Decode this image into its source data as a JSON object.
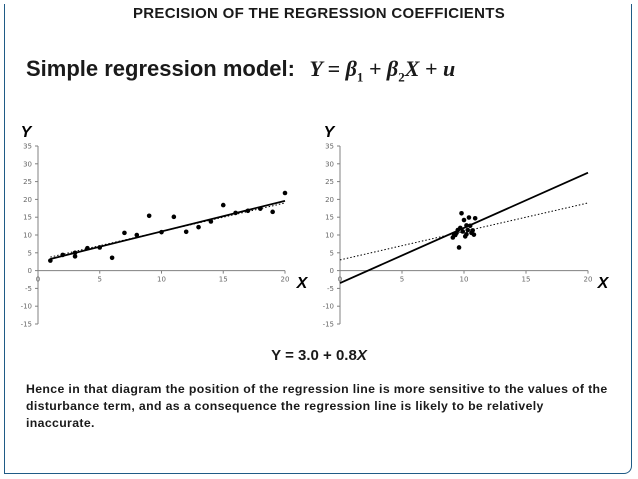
{
  "slide": {
    "title": "PRECISION OF THE REGRESSION COEFFICIENTS",
    "model_label": "Simple regression model:",
    "model_equation": {
      "lhs": "Y = ",
      "beta": "β",
      "sub1": "1",
      "plus1": " + ",
      "sub2": "2",
      "x_term": "X",
      "plus2": " + ",
      "u": "u"
    },
    "fitted_line": {
      "text": "Y = 3.0 + 0.8",
      "var": "X"
    },
    "paragraph": "Hence in that diagram the position of the regression line is more sensitive to the values of the disturbance term, and as a consequence the regression line is likely to be relatively inaccurate."
  },
  "chart_data": [
    {
      "type": "scatter",
      "title": "",
      "xlabel": "X",
      "ylabel": "Y",
      "xlim": [
        0,
        20
      ],
      "ylim": [
        -15,
        35
      ],
      "xticks": [
        0,
        5,
        10,
        15,
        20
      ],
      "yticks": [
        -15,
        -10,
        -5,
        0,
        5,
        10,
        15,
        20,
        25,
        30,
        35
      ],
      "points": [
        [
          1,
          2.8
        ],
        [
          2,
          4.4
        ],
        [
          3,
          4.0
        ],
        [
          3,
          5.0
        ],
        [
          4,
          6.3
        ],
        [
          5,
          6.5
        ],
        [
          6,
          3.6
        ],
        [
          7,
          10.6
        ],
        [
          8,
          10.0
        ],
        [
          9,
          15.4
        ],
        [
          10,
          10.8
        ],
        [
          11,
          15.1
        ],
        [
          12,
          10.9
        ],
        [
          13,
          12.2
        ],
        [
          14,
          13.8
        ],
        [
          15,
          18.4
        ],
        [
          16,
          16.2
        ],
        [
          17,
          16.8
        ],
        [
          18,
          17.4
        ],
        [
          19,
          16.5
        ],
        [
          20,
          21.8
        ]
      ],
      "lines": [
        {
          "name": "true relationship",
          "style": "dotted",
          "intercept": 3.0,
          "slope": 0.8,
          "x_range": [
            1,
            20
          ]
        },
        {
          "name": "fitted regression line",
          "style": "solid",
          "intercept": 2.4,
          "slope": 0.86,
          "x_range": [
            1,
            20
          ]
        }
      ]
    },
    {
      "type": "scatter",
      "title": "",
      "xlabel": "X",
      "ylabel": "Y",
      "xlim": [
        0,
        20
      ],
      "ylim": [
        -15,
        35
      ],
      "xticks": [
        0,
        5,
        10,
        15,
        20
      ],
      "yticks": [
        -15,
        -10,
        -5,
        0,
        5,
        10,
        15,
        20,
        25,
        30,
        35
      ],
      "points": [
        [
          9.1,
          9.3
        ],
        [
          9.3,
          10.0
        ],
        [
          9.4,
          10.6
        ],
        [
          9.6,
          6.5
        ],
        [
          9.7,
          12.0
        ],
        [
          9.8,
          16.1
        ],
        [
          9.9,
          11.0
        ],
        [
          10.0,
          14.2
        ],
        [
          10.1,
          9.6
        ],
        [
          10.2,
          10.2
        ],
        [
          10.3,
          11.4
        ],
        [
          10.4,
          14.9
        ],
        [
          10.5,
          12.6
        ],
        [
          10.6,
          10.6
        ],
        [
          10.7,
          11.3
        ],
        [
          10.9,
          14.7
        ],
        [
          9.5,
          11.4
        ],
        [
          10.2,
          12.7
        ],
        [
          10.8,
          10.1
        ],
        [
          9.2,
          10.1
        ]
      ],
      "lines": [
        {
          "name": "true relationship",
          "style": "dotted",
          "intercept": 3.0,
          "slope": 0.8,
          "x_range": [
            0,
            20
          ]
        },
        {
          "name": "fitted regression line",
          "style": "solid",
          "intercept": -3.5,
          "slope": 1.55,
          "x_range": [
            0,
            20
          ]
        }
      ]
    }
  ]
}
